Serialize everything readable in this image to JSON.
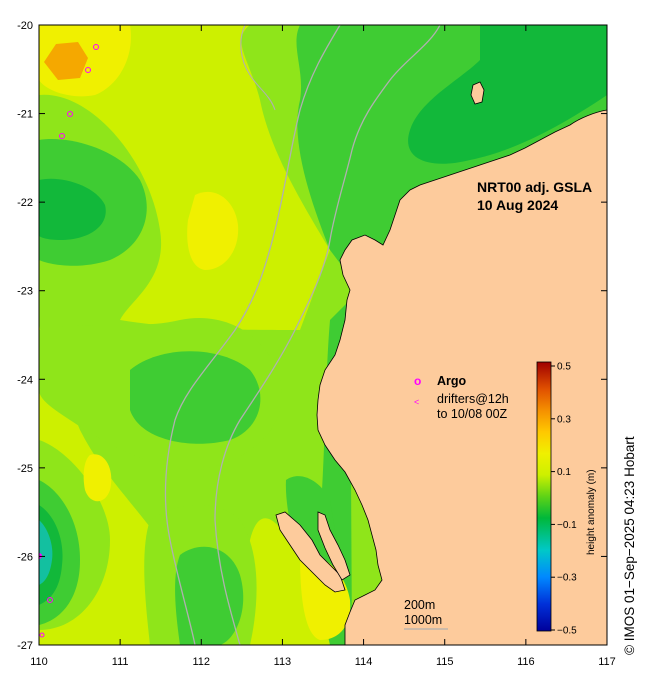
{
  "map": {
    "title_line1": "NRT00 adj. GSLA",
    "title_line2": "10 Aug 2024",
    "x_ticks": [
      "110",
      "111",
      "112",
      "113",
      "114",
      "115",
      "116",
      "117"
    ],
    "y_ticks": [
      "-20",
      "-21",
      "-22",
      "-23",
      "-24",
      "-25",
      "-26",
      "-27"
    ],
    "lon_range": [
      110,
      117
    ],
    "lat_range": [
      -27,
      -20
    ]
  },
  "legend": {
    "argo_marker": "o",
    "argo_label": "Argo",
    "drifter_marker": "<",
    "drifter_line1": "drifters@12h",
    "drifter_line2": "to 10/08 00Z"
  },
  "scale_legend": {
    "line1": "200m",
    "line2": "1000m"
  },
  "colorbar": {
    "label": "height anomaly (m)",
    "ticks": [
      "0.5",
      "0.3",
      "0.1",
      "−0.1",
      "−0.3",
      "−0.5"
    ],
    "range": [
      -0.5,
      0.5
    ]
  },
  "credit": "© IMOS 01−Sep−2025 04:23 Hobart",
  "colors": {
    "land": "#fdcb9c",
    "ocean_base": "#cdf000",
    "anomaly_low": "#00009a",
    "anomaly_high": "#a00000",
    "argo": "#ff00ff",
    "drifter": "#ff00ff"
  }
}
